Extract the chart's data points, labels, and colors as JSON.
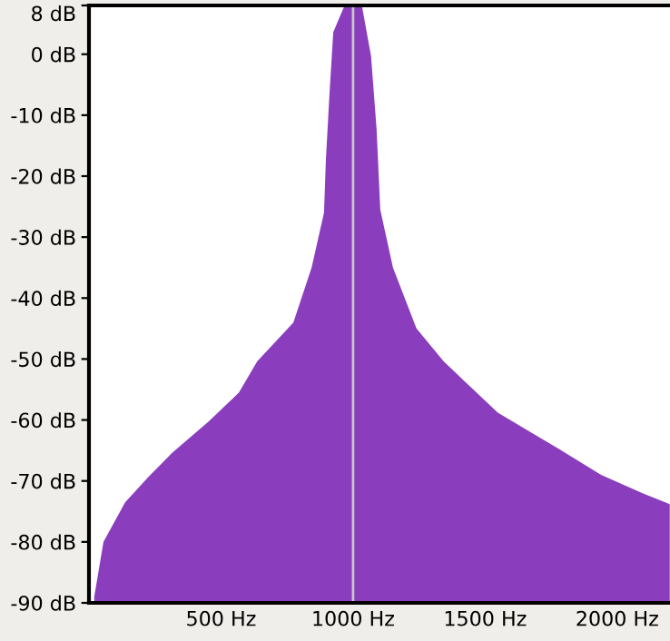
{
  "chart_data": {
    "type": "area",
    "x": [
      20,
      55,
      137,
      226,
      315,
      452,
      568,
      637,
      774,
      843,
      890,
      897,
      911,
      925,
      966,
      1014,
      1034,
      1068,
      1089,
      1103,
      1151,
      1240,
      1343,
      1438,
      1548,
      1665,
      1781,
      1939,
      2096,
      2199
    ],
    "series": [
      {
        "color": "#8a3dbd",
        "values": [
          -89,
          -80,
          -73.5,
          -69.3,
          -65.4,
          -60.3,
          -55.5,
          -50.4,
          -44,
          -35,
          -26,
          -17.4,
          -6.3,
          3.6,
          7.8,
          8,
          7.8,
          -0.3,
          -12.3,
          -25.5,
          -35,
          -45,
          -50.4,
          -54.3,
          -58.8,
          -61.8,
          -64.8,
          -69,
          -72,
          -73.8
        ]
      }
    ],
    "xlim": [
      0,
      2200
    ],
    "xticks": [
      {
        "value": 500,
        "label": "500 Hz"
      },
      {
        "value": 1000,
        "label": "1000 Hz"
      },
      {
        "value": 1500,
        "label": "1500 Hz"
      },
      {
        "value": 2000,
        "label": "2000 Hz"
      }
    ],
    "ylim": [
      -90,
      8
    ],
    "yticks": [
      {
        "value": 8,
        "label": "8 dB"
      },
      {
        "value": 0,
        "label": "0 dB"
      },
      {
        "value": -10,
        "label": "-10 dB"
      },
      {
        "value": -20,
        "label": "-20 dB"
      },
      {
        "value": -30,
        "label": "-30 dB"
      },
      {
        "value": -40,
        "label": "-40 dB"
      },
      {
        "value": -50,
        "label": "-50 dB"
      },
      {
        "value": -60,
        "label": "-60 dB"
      },
      {
        "value": -70,
        "label": "-70 dB"
      },
      {
        "value": -80,
        "label": "-80 dB"
      },
      {
        "value": -90,
        "label": "-90 dB"
      }
    ],
    "ref_lines": [
      {
        "axis": "x",
        "value": 1000,
        "color": "#c8c8c8"
      }
    ],
    "grid": false,
    "legend": false
  }
}
